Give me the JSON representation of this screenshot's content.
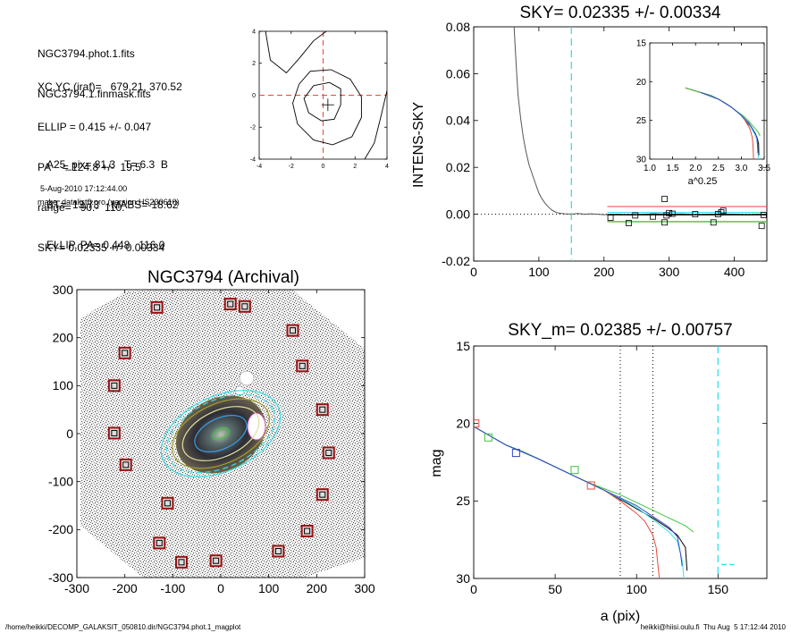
{
  "header": {
    "files": [
      "NGC3794.phot.1.fits",
      "NGC3794.1.finmask.fits"
    ],
    "params": [
      "XC,YC (iraf)=   679.21, 370.52",
      "ELLIP = 0.415 +/- 0.047",
      "PA    = 124.8 +/-  19.5",
      "range=   90.-  110.",
      "SKY= 0.02335 +/- 0.00334"
    ],
    "stats": [
      "A25_pix= 81.3   T= 6.3  B",
      "BT=  13.73    MABS=-18.62",
      "ELLIP, PA= 0.448   116.0"
    ],
    "date": "5-Aug-2010 17:12:44.00",
    "program": "make_datalist0.pro (version HS230610)"
  },
  "footer": {
    "left": "/home/heikki/DECOMP_GALAKSIT_050810.dir/NGC3794.phot.1_magplot",
    "right": "heikki@hiisi.oulu.fi  Thu Aug  5 17:12:44 2010"
  },
  "colors": {
    "red": "#e8473b",
    "green": "#3ec43e",
    "blue": "#3646c8",
    "cyan": "#39dfe8",
    "black": "#000000",
    "grey": "#555555",
    "darkred": "#9a1010"
  },
  "chart_data": [
    {
      "id": "contour",
      "type": "contour",
      "title": "",
      "xlim": [
        -4,
        4
      ],
      "ylim": [
        -4,
        4
      ],
      "xticks": [
        "-4",
        "-2",
        "0",
        "2",
        "4"
      ],
      "yticks": [
        "-4",
        "-2",
        "0",
        "2",
        "4"
      ],
      "contours": [
        [
          [
            -0.6,
            0.6
          ],
          [
            0.4,
            0.8
          ],
          [
            1.1,
            0.4
          ],
          [
            1.1,
            -0.6
          ],
          [
            0.7,
            -1.5
          ],
          [
            -0.1,
            -1.6
          ],
          [
            -0.9,
            -1.1
          ],
          [
            -1.2,
            -0.2
          ],
          [
            -0.6,
            0.6
          ]
        ],
        [
          [
            -1.5,
            0.7
          ],
          [
            -0.8,
            1.5
          ],
          [
            0.5,
            1.6
          ],
          [
            1.7,
            1.0
          ],
          [
            2.4,
            -0.1
          ],
          [
            2.4,
            -1.4
          ],
          [
            1.8,
            -2.6
          ],
          [
            0.6,
            -3.1
          ],
          [
            -0.6,
            -2.8
          ],
          [
            -1.6,
            -1.8
          ],
          [
            -1.9,
            -0.5
          ],
          [
            -1.5,
            0.7
          ]
        ],
        [
          [
            -3.6,
            4.0
          ],
          [
            -3.3,
            2.2
          ],
          [
            -2.3,
            1.4
          ],
          [
            -1.5,
            2.3
          ],
          [
            -0.6,
            3.4
          ],
          [
            0.2,
            4.0
          ]
        ],
        [
          [
            4.0,
            0.3
          ],
          [
            3.6,
            -1.4
          ],
          [
            3.2,
            -3.0
          ],
          [
            2.6,
            -4.0
          ]
        ]
      ],
      "crosshair": [
        0,
        0
      ],
      "marker": [
        0.3,
        -0.6
      ]
    },
    {
      "id": "intensity",
      "type": "line",
      "title": "SKY= 0.02335 +/- 0.00334",
      "xlabel": "",
      "ylabel": "INTENS-SKY",
      "xlim": [
        0,
        450
      ],
      "ylim": [
        -0.02,
        0.08
      ],
      "xticks": [
        "0",
        "100",
        "200",
        "300",
        "400"
      ],
      "yticks": [
        "-0.02",
        "0.00",
        "0.02",
        "0.04",
        "0.06",
        "0.08"
      ],
      "profile": [
        [
          62,
          0.08
        ],
        [
          64,
          0.07
        ],
        [
          66,
          0.06
        ],
        [
          68,
          0.051
        ],
        [
          72,
          0.041
        ],
        [
          76,
          0.033
        ],
        [
          80,
          0.027
        ],
        [
          85,
          0.021
        ],
        [
          90,
          0.017
        ],
        [
          95,
          0.013
        ],
        [
          100,
          0.009
        ],
        [
          105,
          0.0065
        ],
        [
          110,
          0.0045
        ],
        [
          115,
          0.003
        ],
        [
          120,
          0.0017
        ],
        [
          125,
          0.001
        ],
        [
          130,
          0.0005
        ],
        [
          135,
          0.0003
        ],
        [
          140,
          0.0002
        ],
        [
          145,
          0.0001
        ],
        [
          150,
          0.0
        ],
        [
          160,
          0.0003
        ],
        [
          170,
          0.0
        ],
        [
          180,
          0.0002
        ],
        [
          200,
          -0.0002
        ],
        [
          220,
          0.0
        ],
        [
          240,
          -0.0003
        ],
        [
          260,
          0.0
        ],
        [
          280,
          0.0002
        ],
        [
          300,
          0.0
        ],
        [
          320,
          0.0001
        ],
        [
          340,
          -0.0002
        ],
        [
          360,
          0.0
        ],
        [
          380,
          0.0001
        ],
        [
          400,
          0.0
        ],
        [
          420,
          -0.0002
        ],
        [
          440,
          0.0
        ],
        [
          450,
          0.0
        ]
      ],
      "squares": [
        [
          210,
          -0.0015
        ],
        [
          238,
          -0.0038
        ],
        [
          248,
          -0.0005
        ],
        [
          275,
          -0.001
        ],
        [
          293,
          -0.0035
        ],
        [
          293,
          0.0065
        ],
        [
          296,
          -0.0005
        ],
        [
          300,
          0.0005
        ],
        [
          305,
          0.0002
        ],
        [
          340,
          0.0
        ],
        [
          368,
          -0.0035
        ],
        [
          375,
          0.0
        ],
        [
          380,
          0.0008
        ],
        [
          383,
          0.0015
        ],
        [
          442,
          -0.005
        ],
        [
          445,
          -0.0003
        ]
      ],
      "dashed_x": 150,
      "red_line": [
        [
          205,
          450
        ],
        0.0033
      ],
      "green_line": [
        [
          205,
          450
        ],
        -0.0032
      ],
      "black_line": [
        [
          205,
          450
        ],
        -0.0002
      ],
      "blue_line": [
        [
          205,
          450
        ],
        0.0008
      ],
      "inset": {
        "xlabel": "a^0.25",
        "xlim": [
          1.0,
          3.5
        ],
        "ylim": [
          30,
          15
        ],
        "xticks": [
          "1.0",
          "1.5",
          "2.0",
          "2.5",
          "3.0",
          "3.5"
        ],
        "yticks": [
          "15",
          "20",
          "25",
          "30"
        ]
      }
    },
    {
      "id": "image",
      "type": "image",
      "title": "NGC3794 (Archival)",
      "xlim": [
        -300,
        300
      ],
      "ylim": [
        -300,
        300
      ],
      "xticks": [
        "-300",
        "-200",
        "-100",
        "0",
        "100",
        "200",
        "300"
      ],
      "yticks": [
        "-300",
        "-200",
        "-100",
        "0",
        "100",
        "200",
        "300"
      ],
      "star_boxes": [
        [
          -133,
          263
        ],
        [
          -200,
          168
        ],
        [
          -222,
          100
        ],
        [
          -222,
          1
        ],
        [
          -198,
          -65
        ],
        [
          -111,
          -145
        ],
        [
          -128,
          -228
        ],
        [
          -82,
          -268
        ],
        [
          20,
          270
        ],
        [
          50,
          265
        ],
        [
          150,
          215
        ],
        [
          170,
          141
        ],
        [
          212,
          50
        ],
        [
          225,
          -40
        ],
        [
          212,
          -127
        ],
        [
          180,
          -203
        ],
        [
          120,
          -245
        ],
        [
          -10,
          -265
        ]
      ],
      "ellipses": [
        [
          0,
          0,
          85,
          48,
          -25
        ],
        [
          0,
          0,
          108,
          62,
          -25
        ],
        [
          0,
          0,
          120,
          70,
          -25
        ],
        [
          0,
          0,
          132,
          78,
          -25
        ],
        [
          0,
          0,
          58,
          32,
          -25
        ],
        [
          0,
          0,
          18,
          10,
          -25
        ]
      ]
    },
    {
      "id": "magnitude",
      "type": "line",
      "title": "SKY_m=  0.02385 +/- 0.00757",
      "xlabel": "a (pix)",
      "ylabel": "mag",
      "xlim": [
        0,
        180
      ],
      "ylim": [
        30,
        15
      ],
      "xticks": [
        "0",
        "50",
        "100",
        "150"
      ],
      "yticks": [
        "15",
        "20",
        "25",
        "30"
      ],
      "vlines": [
        90,
        110
      ],
      "cyan_vline": 150,
      "series": [
        {
          "color": "black",
          "values": [
            [
              0,
              20.2
            ],
            [
              10,
              20.8
            ],
            [
              20,
              21.4
            ],
            [
              30,
              21.8
            ],
            [
              40,
              22.3
            ],
            [
              50,
              22.8
            ],
            [
              60,
              23.3
            ],
            [
              70,
              23.8
            ],
            [
              80,
              24.3
            ],
            [
              90,
              24.9
            ],
            [
              100,
              25.5
            ],
            [
              110,
              26.1
            ],
            [
              120,
              26.8
            ],
            [
              125,
              27.2
            ],
            [
              130,
              28.0
            ],
            [
              131,
              29.5
            ]
          ]
        },
        {
          "color": "red",
          "values": [
            [
              0,
              20.2
            ],
            [
              10,
              20.8
            ],
            [
              20,
              21.4
            ],
            [
              30,
              21.8
            ],
            [
              40,
              22.3
            ],
            [
              50,
              22.8
            ],
            [
              60,
              23.3
            ],
            [
              70,
              23.8
            ],
            [
              80,
              24.3
            ],
            [
              90,
              25.0
            ],
            [
              100,
              25.8
            ],
            [
              105,
              26.3
            ],
            [
              110,
              27.2
            ],
            [
              112,
              28.0
            ],
            [
              114,
              30.0
            ]
          ]
        },
        {
          "color": "green",
          "values": [
            [
              0,
              20.2
            ],
            [
              10,
              20.8
            ],
            [
              20,
              21.4
            ],
            [
              30,
              21.8
            ],
            [
              40,
              22.3
            ],
            [
              50,
              22.8
            ],
            [
              60,
              23.3
            ],
            [
              70,
              23.8
            ],
            [
              80,
              24.2
            ],
            [
              90,
              24.6
            ],
            [
              100,
              25.1
            ],
            [
              110,
              25.6
            ],
            [
              120,
              26.1
            ],
            [
              130,
              26.6
            ],
            [
              135,
              27.0
            ]
          ]
        },
        {
          "color": "cyan",
          "values": [
            [
              0,
              20.2
            ],
            [
              20,
              21.4
            ],
            [
              40,
              22.3
            ],
            [
              60,
              23.3
            ],
            [
              80,
              24.3
            ],
            [
              100,
              25.4
            ],
            [
              110,
              26.2
            ],
            [
              120,
              27.0
            ],
            [
              125,
              27.6
            ],
            [
              128,
              28.8
            ],
            [
              129,
              30.0
            ]
          ]
        },
        {
          "color": "blue",
          "values": [
            [
              0,
              20.2
            ],
            [
              20,
              21.4
            ],
            [
              40,
              22.3
            ],
            [
              60,
              23.3
            ],
            [
              80,
              24.3
            ],
            [
              100,
              25.3
            ],
            [
              110,
              26.0
            ],
            [
              120,
              26.7
            ],
            [
              125,
              27.3
            ],
            [
              127,
              28.4
            ],
            [
              128,
              29.2
            ]
          ]
        }
      ],
      "squares": [
        {
          "x": 1,
          "y": 20.0,
          "color": "red"
        },
        {
          "x": 9,
          "y": 20.9,
          "color": "green"
        },
        {
          "x": 26,
          "y": 21.9,
          "color": "blue"
        },
        {
          "x": 62,
          "y": 23.0,
          "color": "green"
        },
        {
          "x": 72,
          "y": 24.0,
          "color": "red"
        }
      ],
      "sky_dash": [
        [
          152,
          160
        ],
        29.1
      ]
    }
  ]
}
